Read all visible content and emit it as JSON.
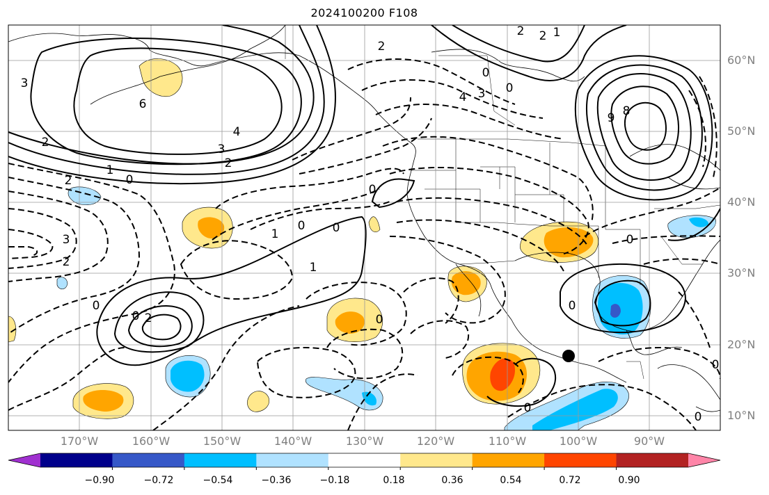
{
  "title": "2024100200 F108",
  "longitude_labels": [
    "170°W",
    "160°W",
    "150°W",
    "140°W",
    "130°W",
    "120°W",
    "110°W",
    "100°W",
    "90°W"
  ],
  "latitude_labels": [
    "60°N",
    "50°N",
    "40°N",
    "30°N",
    "20°N",
    "10°N"
  ],
  "colorbar": {
    "tick_labels": [
      "−0.90",
      "−0.72",
      "−0.54",
      "−0.36",
      "−0.18",
      "0.18",
      "0.36",
      "0.54",
      "0.72",
      "0.90"
    ],
    "colors": [
      "#a030d0",
      "#00008b",
      "#3658c8",
      "#00bfff",
      "#b0e2ff",
      "#ffffff",
      "#ffe88c",
      "#ffa500",
      "#ff4500",
      "#b22222",
      "#ff85a8"
    ]
  },
  "contour_labels": [
    "3",
    "6",
    "2",
    "4",
    "3",
    "2",
    "1",
    "0",
    "2",
    "3",
    "2",
    "0",
    "0",
    "0",
    "1",
    "0",
    "1",
    "2",
    "0",
    "0",
    "2",
    "2",
    "1",
    "2",
    "0",
    "4",
    "3",
    "0",
    "9",
    "8",
    "0",
    "0",
    "0",
    "0",
    "0"
  ],
  "marker": "station-dot"
}
